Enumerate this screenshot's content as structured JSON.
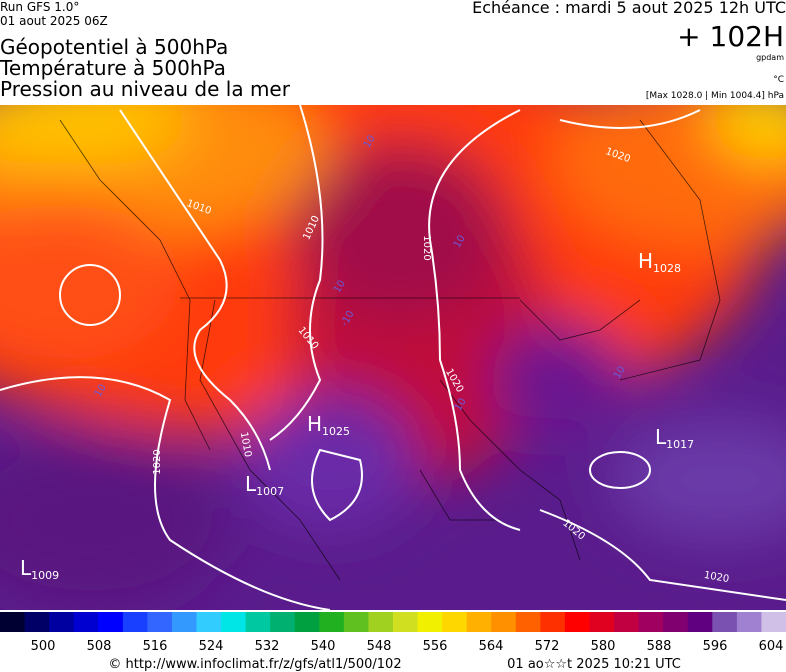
{
  "header": {
    "run": "Run GFS 1.0°",
    "date": "01 aout 2025 06Z",
    "titles": [
      "Géopotentiel à 500hPa",
      "Température à 500hPa",
      "Pression au niveau de la mer"
    ],
    "echeance": "Echéance : mardi 5 aout 2025 12h UTC",
    "offset": "+ 102H",
    "unit_gp": "gpdam",
    "unit_t": "°C",
    "range": "[Max 1028.0 | Min 1004.4] hPa"
  },
  "map": {
    "pressure_centers": [
      {
        "type": "H",
        "value": "1028"
      },
      {
        "type": "H",
        "value": "1025"
      },
      {
        "type": "L",
        "value": "1017"
      },
      {
        "type": "L",
        "value": "1007"
      },
      {
        "type": "L",
        "value": "1009"
      }
    ],
    "isobar_labels": [
      "1010",
      "1010",
      "1020",
      "1020",
      "1010",
      "1020",
      "1010",
      "1020",
      "1020",
      "1020"
    ],
    "temperature_labels": [
      "10",
      "10",
      "10",
      "10",
      "10",
      "10",
      "-10"
    ]
  },
  "colorbar": {
    "labels": [
      "500",
      "508",
      "516",
      "524",
      "532",
      "540",
      "548",
      "556",
      "564",
      "572",
      "580",
      "588",
      "596",
      "604"
    ]
  },
  "footer": {
    "url": "© http://www.infoclimat.fr/z/gfs/atl1/500/102",
    "generated": "01 ao☆☆t 2025 10:21 UTC"
  }
}
